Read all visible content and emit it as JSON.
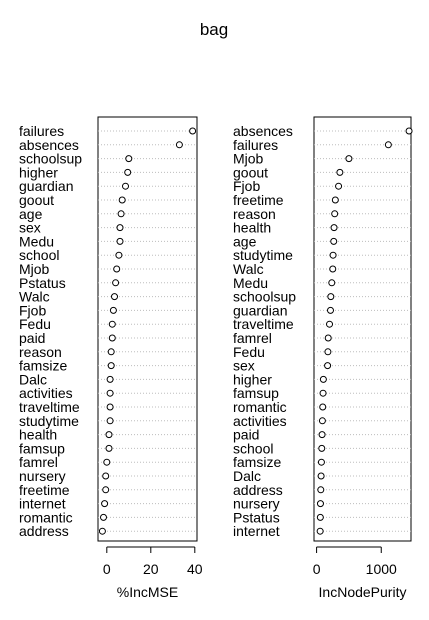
{
  "chart_data": {
    "title": "bag",
    "type": "dotchart",
    "panels": [
      {
        "xlabel": "%IncMSE",
        "xlim": [
          -4,
          41
        ],
        "xticks": [
          0,
          20,
          40
        ],
        "categories": [
          "failures",
          "absences",
          "schoolsup",
          "higher",
          "guardian",
          "goout",
          "age",
          "sex",
          "Medu",
          "school",
          "Mjob",
          "Pstatus",
          "Walc",
          "Fjob",
          "Fedu",
          "paid",
          "reason",
          "famsize",
          "Dalc",
          "activities",
          "traveltime",
          "studytime",
          "health",
          "famsup",
          "famrel",
          "nursery",
          "freetime",
          "internet",
          "romantic",
          "address"
        ],
        "values": [
          39,
          33,
          10,
          9.5,
          8.5,
          7,
          6.5,
          6,
          6,
          5.5,
          4.5,
          4,
          3.5,
          3,
          2.5,
          2.5,
          2,
          2,
          1.5,
          1.5,
          1.5,
          1.5,
          1,
          1,
          0,
          -0.5,
          -0.5,
          -1,
          -1.5,
          -2
        ]
      },
      {
        "xlabel": "IncNodePurity",
        "xlim": [
          -40,
          1460
        ],
        "xticks": [
          0,
          1000
        ],
        "categories": [
          "absences",
          "failures",
          "Mjob",
          "goout",
          "Fjob",
          "freetime",
          "reason",
          "health",
          "age",
          "studytime",
          "Walc",
          "Medu",
          "schoolsup",
          "guardian",
          "traveltime",
          "famrel",
          "Fedu",
          "sex",
          "higher",
          "famsup",
          "romantic",
          "activities",
          "paid",
          "school",
          "famsize",
          "Dalc",
          "address",
          "nursery",
          "Pstatus",
          "internet"
        ],
        "values": [
          1430,
          1110,
          500,
          360,
          340,
          290,
          280,
          270,
          265,
          255,
          250,
          235,
          220,
          215,
          200,
          180,
          175,
          170,
          105,
          100,
          95,
          90,
          85,
          80,
          75,
          70,
          65,
          60,
          58,
          55
        ]
      }
    ]
  }
}
